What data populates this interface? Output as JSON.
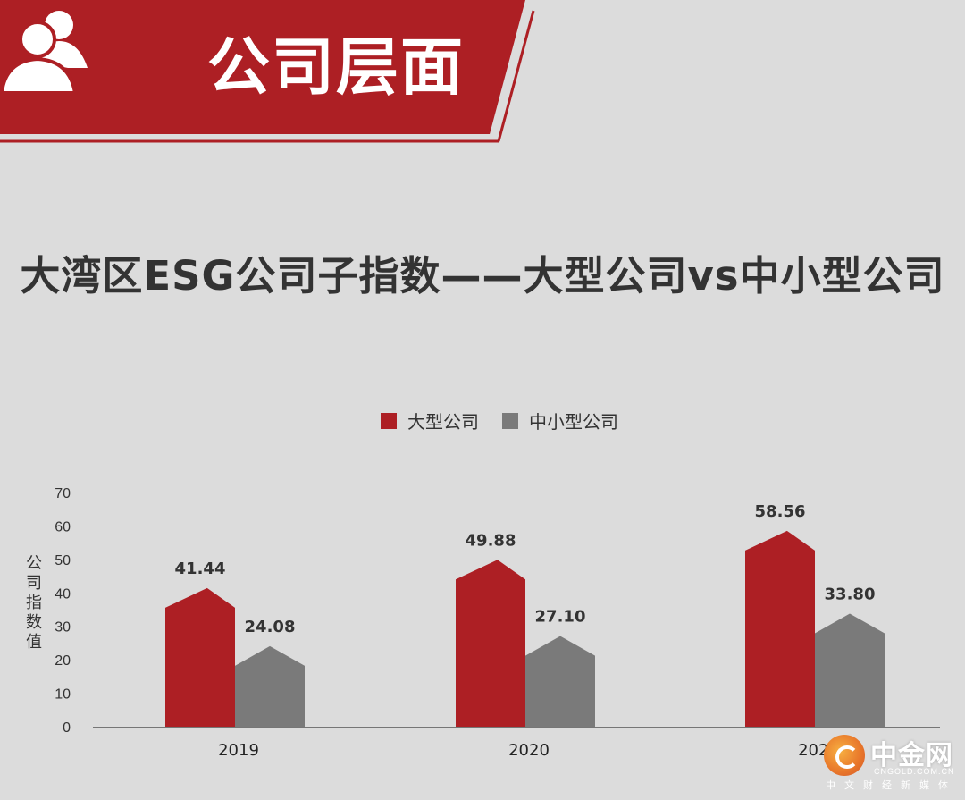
{
  "banner": {
    "title": "公司层面",
    "icon": "people-icon",
    "bg_color": "#ad1f24"
  },
  "chart_data": {
    "type": "bar",
    "title": "大湾区ESG公司子指数——大型公司vs中小型公司",
    "ylabel": "公司指数值",
    "categories": [
      "2019",
      "2020",
      "2021"
    ],
    "ylim": [
      0,
      70
    ],
    "yticks": [
      0,
      10,
      20,
      30,
      40,
      50,
      60,
      70
    ],
    "grid": false,
    "legend_position": "top-center",
    "series": [
      {
        "name": "大型公司",
        "values": [
          41.44,
          49.88,
          58.56
        ],
        "color": "#ad1f24",
        "labels": [
          "41.44",
          "49.88",
          "58.56"
        ]
      },
      {
        "name": "中小型公司",
        "values": [
          24.08,
          27.1,
          33.8
        ],
        "color": "#7a7a7a",
        "labels": [
          "24.08",
          "27.10",
          "33.80"
        ]
      }
    ]
  },
  "watermark": {
    "name": "中金网",
    "domain": "CNGOLD.COM.CN",
    "tagline": "中文财经新媒体"
  }
}
